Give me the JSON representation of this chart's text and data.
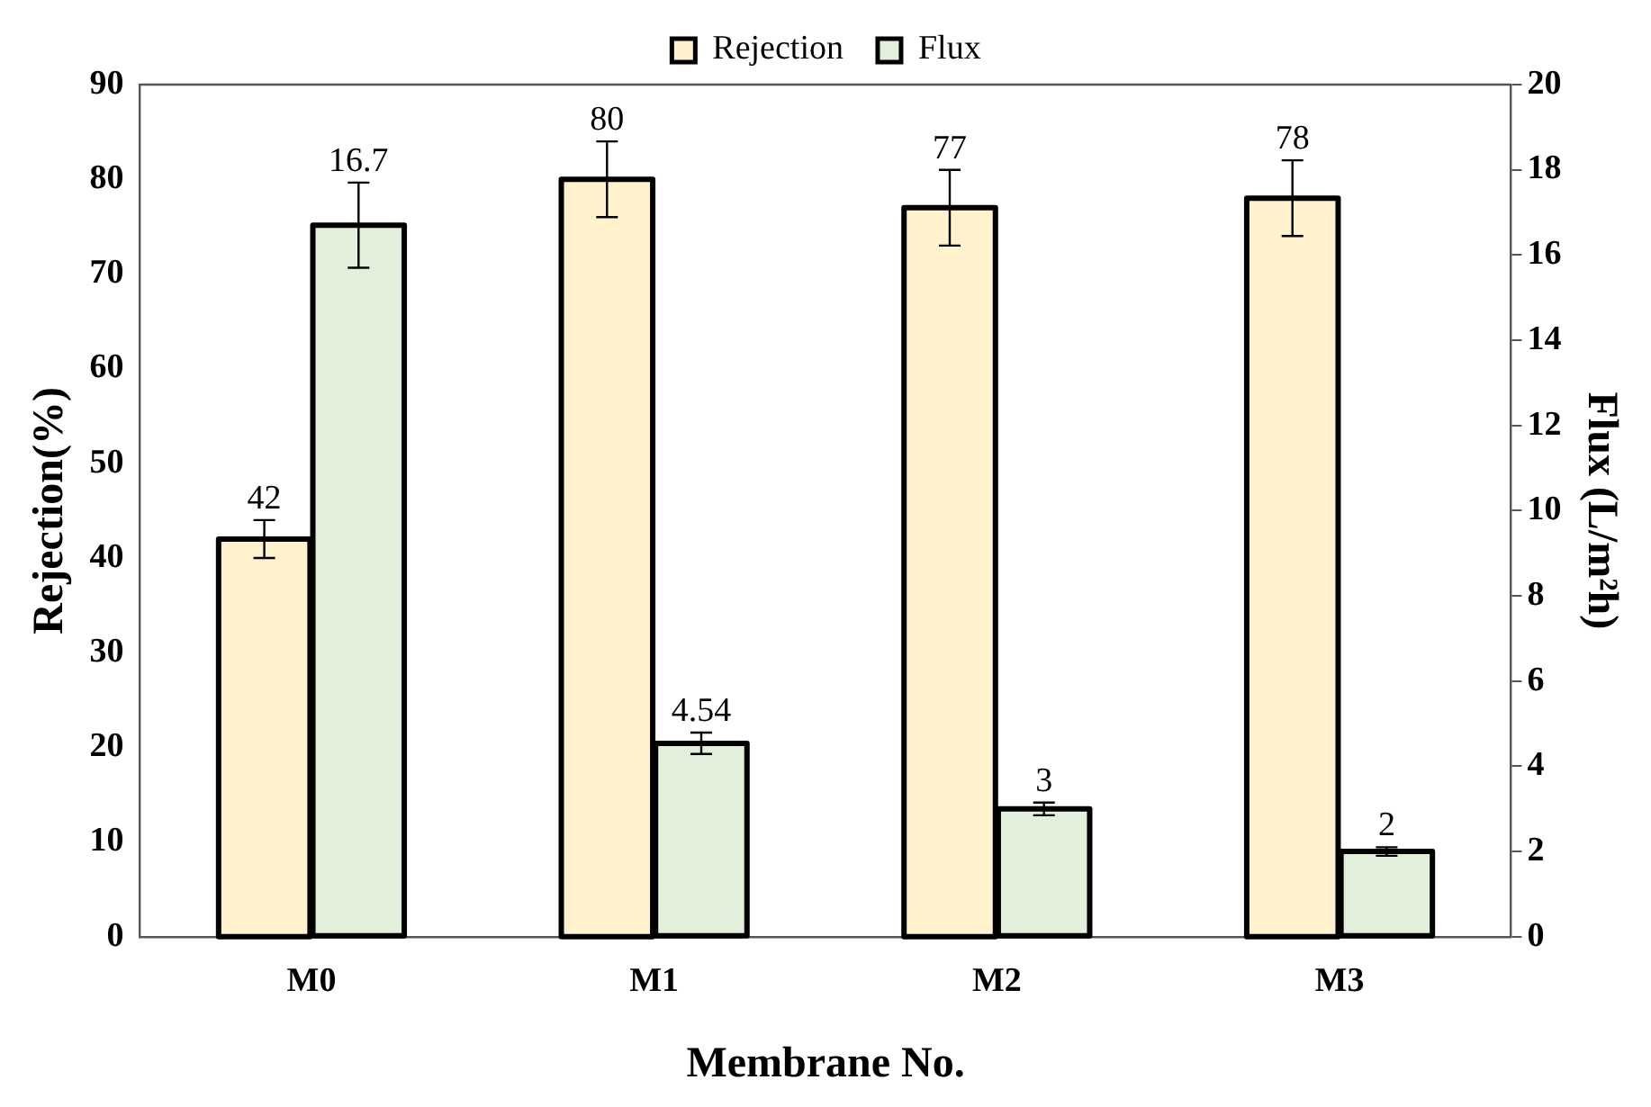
{
  "chart_data": {
    "type": "bar",
    "xlabel": "Membrane No.",
    "ylabel": "Rejection(%)",
    "y2label": "Flux (L/m²h)",
    "categories": [
      "M0",
      "M1",
      "M2",
      "M3"
    ],
    "series": [
      {
        "name": "Rejection",
        "color": "#fff2cc",
        "values": [
          42,
          80,
          77,
          78
        ],
        "errors": [
          2,
          4,
          4,
          4
        ]
      },
      {
        "name": "Flux",
        "color": "#e2efda",
        "values": [
          16.7,
          4.54,
          3,
          2
        ],
        "errors": [
          1,
          0.25,
          0.15,
          0.1
        ],
        "axis": "y2"
      }
    ],
    "ylim": [
      0,
      90
    ],
    "yticks": [
      0,
      10,
      20,
      30,
      40,
      50,
      60,
      70,
      80,
      90
    ],
    "y2lim": [
      0,
      20
    ],
    "y2ticks": [
      0,
      2,
      4,
      6,
      8,
      10,
      12,
      14,
      16,
      18,
      20
    ],
    "data_labels": true,
    "legend": "top",
    "grid": false
  }
}
